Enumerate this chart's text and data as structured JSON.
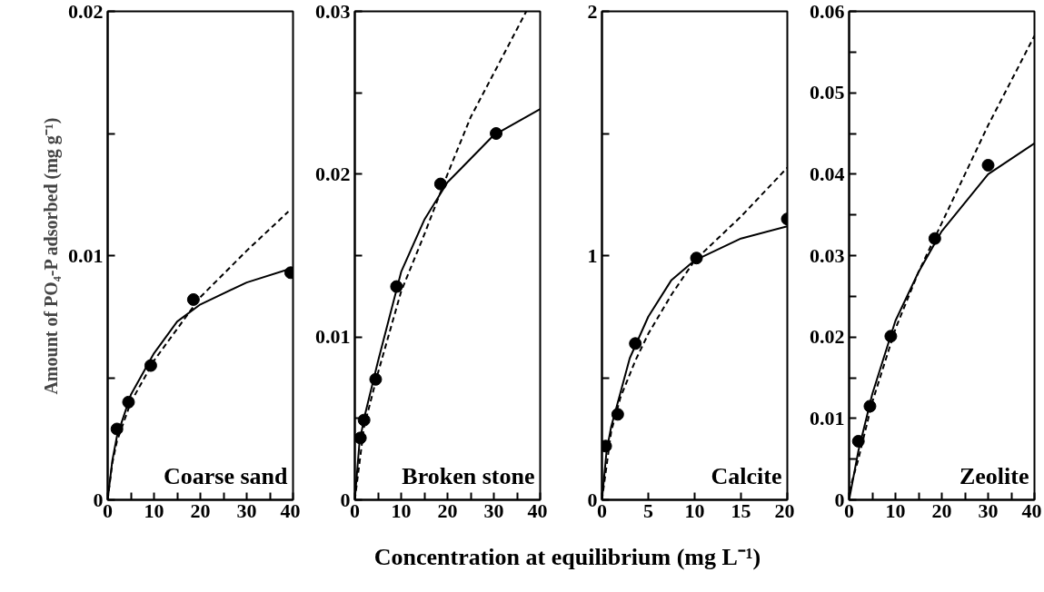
{
  "chart_data": [
    {
      "type": "scatter",
      "ylabel": "Amount of PO₄-P adsorbed (mg g⁻¹)",
      "xlabel": "Concentration at equilibrium (mg L⁻¹)",
      "annotations": [
        "Coarse sand"
      ],
      "xlim": [
        0,
        40
      ],
      "ylim": [
        0,
        0.02
      ],
      "xticks": [
        0,
        {
          "value": 5,
          "label": null
        },
        10,
        {
          "value": 15,
          "label": null
        },
        20,
        {
          "value": 25,
          "label": null
        },
        30,
        {
          "value": 35,
          "label": null
        },
        40
      ],
      "yticks": [
        0,
        {
          "value": 0.005,
          "label": null
        },
        0.01,
        {
          "value": 0.015,
          "label": null
        },
        0.02
      ],
      "grid": false,
      "series": [
        {
          "marker": "circle",
          "color": "#000000",
          "x": [
            2,
            4.5,
            9.3,
            18.5,
            39.5
          ],
          "values": [
            0.0029,
            0.004,
            0.0055,
            0.0082,
            0.0093
          ]
        },
        {
          "type": "line",
          "line_style": "solid",
          "color": "#000000",
          "x": [
            0,
            1,
            2,
            5,
            10,
            15,
            20,
            30,
            40
          ],
          "values": [
            0,
            0.0016,
            0.0026,
            0.0043,
            0.006,
            0.0073,
            0.008,
            0.0089,
            0.0095
          ]
        },
        {
          "type": "line",
          "line_style": "dashed",
          "color": "#000000",
          "x": [
            0,
            1,
            2,
            5,
            10,
            15,
            20,
            30,
            39
          ],
          "values": [
            0,
            0.0015,
            0.0024,
            0.004,
            0.0057,
            0.007,
            0.0083,
            0.0102,
            0.0118
          ]
        }
      ]
    },
    {
      "type": "scatter",
      "annotations": [
        "Broken stone"
      ],
      "xlim": [
        0,
        40
      ],
      "ylim": [
        0,
        0.03
      ],
      "xticks": [
        0,
        {
          "value": 5,
          "label": null
        },
        10,
        {
          "value": 15,
          "label": null
        },
        20,
        {
          "value": 25,
          "label": null
        },
        30,
        {
          "value": 35,
          "label": null
        },
        40
      ],
      "yticks": [
        0,
        {
          "value": 0.005,
          "label": null
        },
        0.01,
        {
          "value": 0.015,
          "label": null
        },
        0.02,
        {
          "value": 0.025,
          "label": null
        },
        0.03
      ],
      "grid": false,
      "series": [
        {
          "marker": "circle",
          "color": "#000000",
          "x": [
            1.2,
            2,
            4.5,
            9,
            18.5,
            30.5
          ],
          "values": [
            0.0038,
            0.0049,
            0.0074,
            0.0131,
            0.0194,
            0.0225
          ]
        },
        {
          "type": "line",
          "line_style": "solid",
          "color": "#000000",
          "x": [
            0,
            1,
            2,
            5,
            10,
            15,
            20,
            30,
            40
          ],
          "values": [
            0,
            0.0035,
            0.005,
            0.0085,
            0.014,
            0.0172,
            0.0195,
            0.0224,
            0.024
          ]
        },
        {
          "type": "line",
          "line_style": "dashed",
          "color": "#000000",
          "x": [
            0,
            2,
            5,
            10,
            15,
            20,
            25,
            30,
            37
          ],
          "values": [
            0,
            0.0045,
            0.0078,
            0.0128,
            0.0163,
            0.02,
            0.0235,
            0.0262,
            0.03
          ]
        }
      ]
    },
    {
      "type": "scatter",
      "annotations": [
        "Calcite"
      ],
      "xlim": [
        0,
        20
      ],
      "ylim": [
        0,
        2
      ],
      "xticks": [
        0,
        5,
        10,
        15,
        20
      ],
      "yticks": [
        0,
        {
          "value": 0.5,
          "label": null
        },
        1,
        {
          "value": 1.5,
          "label": null
        },
        2
      ],
      "grid": false,
      "series": [
        {
          "marker": "circle",
          "color": "#000000",
          "x": [
            0.4,
            1.7,
            3.6,
            10.2,
            20
          ],
          "values": [
            0.22,
            0.35,
            0.64,
            0.99,
            1.15
          ]
        },
        {
          "type": "line",
          "line_style": "solid",
          "color": "#000000",
          "x": [
            0,
            0.5,
            1,
            2,
            3,
            5,
            7.5,
            10,
            15,
            20
          ],
          "values": [
            0,
            0.2,
            0.3,
            0.44,
            0.58,
            0.75,
            0.9,
            0.98,
            1.07,
            1.12
          ]
        },
        {
          "type": "line",
          "line_style": "dashed",
          "color": "#000000",
          "x": [
            0,
            1,
            2,
            3.6,
            5,
            7.5,
            10,
            15,
            20
          ],
          "values": [
            0,
            0.28,
            0.42,
            0.57,
            0.68,
            0.84,
            0.98,
            1.16,
            1.36
          ]
        }
      ]
    },
    {
      "type": "scatter",
      "annotations": [
        "Zeolite"
      ],
      "xlim": [
        0,
        40
      ],
      "ylim": [
        0,
        0.06
      ],
      "xticks": [
        0,
        {
          "value": 5,
          "label": null
        },
        10,
        {
          "value": 15,
          "label": null
        },
        20,
        {
          "value": 25,
          "label": null
        },
        30,
        {
          "value": 35,
          "label": null
        },
        40
      ],
      "yticks": [
        0,
        {
          "value": 0.005,
          "label": null
        },
        0.01,
        {
          "value": 0.015,
          "label": null
        },
        0.02,
        {
          "value": 0.025,
          "label": null
        },
        0.03,
        {
          "value": 0.035,
          "label": null
        },
        0.04,
        {
          "value": 0.045,
          "label": null
        },
        0.05,
        {
          "value": 0.055,
          "label": null
        },
        0.06
      ],
      "grid": false,
      "series": [
        {
          "marker": "circle",
          "color": "#000000",
          "x": [
            2,
            4.5,
            9,
            18.5,
            30
          ],
          "values": [
            0.0072,
            0.0115,
            0.0201,
            0.0321,
            0.0411
          ]
        },
        {
          "type": "line",
          "line_style": "solid",
          "color": "#000000",
          "x": [
            0,
            2,
            5,
            10,
            15,
            20,
            30,
            40
          ],
          "values": [
            0,
            0.006,
            0.013,
            0.022,
            0.028,
            0.033,
            0.04,
            0.0438
          ]
        },
        {
          "type": "line",
          "line_style": "dashed",
          "color": "#000000",
          "x": [
            0,
            2,
            5,
            10,
            15,
            20,
            25,
            30,
            40
          ],
          "values": [
            0.001,
            0.005,
            0.012,
            0.021,
            0.028,
            0.034,
            0.04,
            0.046,
            0.057
          ]
        }
      ]
    }
  ]
}
